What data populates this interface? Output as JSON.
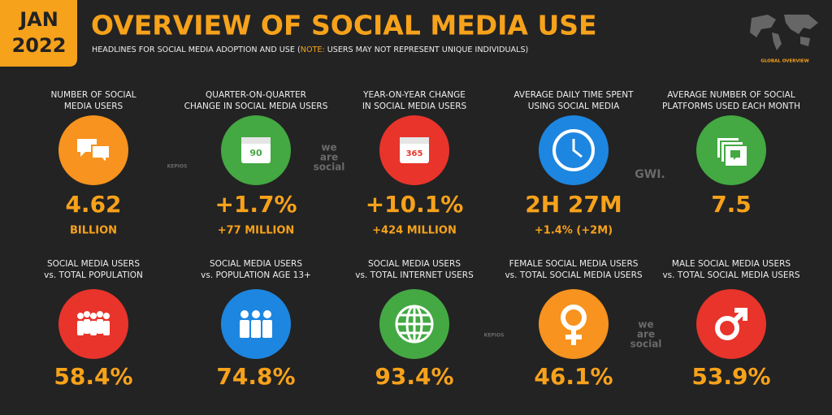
{
  "header": {
    "date_month": "JAN",
    "date_year": "2022",
    "title": "OVERVIEW OF SOCIAL MEDIA USE",
    "subtitle_start": "HEADLINES FOR SOCIAL MEDIA ADOPTION AND USE (",
    "subtitle_note": "NOTE:",
    "subtitle_end": " USERS MAY NOT REPRESENT UNIQUE INDIVIDUALS)",
    "badge": "GLOBAL OVERVIEW"
  },
  "rows": [
    [
      {
        "label": [
          "NUMBER OF SOCIAL",
          "MEDIA USERS"
        ],
        "value": "4.62",
        "sub": "BILLION",
        "color": "#f7931e"
      },
      {
        "label": [
          "QUARTER-ON-QUARTER",
          "CHANGE IN SOCIAL MEDIA USERS"
        ],
        "value": "+1.7%",
        "sub": "+77 MILLION",
        "color": "#44a843",
        "icon_text": "90"
      },
      {
        "label": [
          "YEAR-ON-YEAR CHANGE",
          "IN SOCIAL MEDIA USERS"
        ],
        "value": "+10.1%",
        "sub": "+424 MILLION",
        "color": "#e8342b",
        "icon_text": "365"
      },
      {
        "label": [
          "AVERAGE DAILY TIME SPENT",
          "USING SOCIAL MEDIA"
        ],
        "value": "2H 27M",
        "sub": "+1.4% (+2M)",
        "color": "#1d86e0"
      },
      {
        "label": [
          "AVERAGE NUMBER OF SOCIAL",
          "PLATFORMS USED EACH MONTH"
        ],
        "value": "7.5",
        "color": "#44a843"
      }
    ],
    [
      {
        "label": [
          "SOCIAL MEDIA USERS",
          "vs. TOTAL POPULATION"
        ],
        "value": "58.4%",
        "color": "#e8342b"
      },
      {
        "label": [
          "SOCIAL MEDIA USERS",
          "vs. POPULATION AGE 13+"
        ],
        "value": "74.8%",
        "color": "#1d86e0"
      },
      {
        "label": [
          "SOCIAL MEDIA USERS",
          "vs. TOTAL INTERNET USERS"
        ],
        "value": "93.4%",
        "color": "#44a843"
      },
      {
        "label": [
          "FEMALE SOCIAL MEDIA USERS",
          "vs. TOTAL SOCIAL MEDIA USERS"
        ],
        "value": "46.1%",
        "color": "#f7931e"
      },
      {
        "label": [
          "MALE SOCIAL MEDIA USERS",
          "vs. TOTAL SOCIAL MEDIA USERS"
        ],
        "value": "53.9%",
        "color": "#e8342b"
      }
    ]
  ],
  "watermarks": [
    [
      "KEPIOS"
    ],
    [
      "we",
      "are",
      "social"
    ],
    [
      "GWI."
    ],
    [
      "KEPIOS"
    ],
    [
      "we",
      "are",
      "social"
    ]
  ]
}
